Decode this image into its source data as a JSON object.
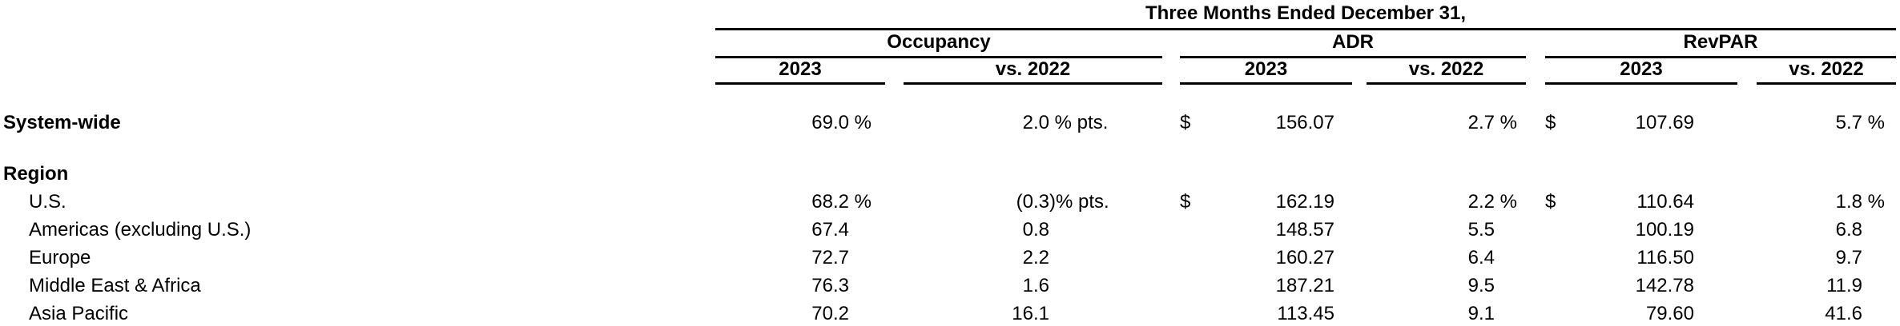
{
  "colors": {
    "text": "#000000",
    "rule": "#000000",
    "background": "#ffffff"
  },
  "table": {
    "period_header": "Three Months Ended December 31,",
    "column_groups": [
      {
        "label": "Occupancy",
        "columns": [
          "2023",
          "vs. 2022"
        ]
      },
      {
        "label": "ADR",
        "columns": [
          "2023",
          "vs. 2022"
        ]
      },
      {
        "label": "RevPAR",
        "columns": [
          "2023",
          "vs. 2022"
        ]
      }
    ],
    "rows": [
      {
        "label": "System-wide",
        "bold": true,
        "indent": false,
        "occupancy_2023": {
          "num": "69.0",
          "suffix": " %"
        },
        "occupancy_vs_2022": {
          "num": "2.0",
          "suffix": " % pts."
        },
        "adr_currency": "$",
        "adr_2023": "156.07",
        "adr_vs_2022": {
          "num": "2.7",
          "suffix": " %"
        },
        "revpar_currency": "$",
        "revpar_2023": "107.69",
        "revpar_vs_2022": {
          "num": "5.7",
          "suffix": " %"
        }
      },
      {
        "label": "Region",
        "bold": true,
        "indent": false,
        "section_header": true,
        "gap_before": true
      },
      {
        "label": "U.S.",
        "bold": false,
        "indent": true,
        "occupancy_2023": {
          "num": "68.2",
          "suffix": " %"
        },
        "occupancy_vs_2022": {
          "num": "(0.3",
          "suffix": ")% pts."
        },
        "adr_currency": "$",
        "adr_2023": "162.19",
        "adr_vs_2022": {
          "num": "2.2",
          "suffix": " %"
        },
        "revpar_currency": "$",
        "revpar_2023": "110.64",
        "revpar_vs_2022": {
          "num": "1.8",
          "suffix": " %"
        }
      },
      {
        "label": "Americas (excluding U.S.)",
        "bold": false,
        "indent": true,
        "occupancy_2023": {
          "num": "67.4",
          "suffix": ""
        },
        "occupancy_vs_2022": {
          "num": "0.8",
          "suffix": ""
        },
        "adr_currency": "",
        "adr_2023": "148.57",
        "adr_vs_2022": {
          "num": "5.5",
          "suffix": ""
        },
        "revpar_currency": "",
        "revpar_2023": "100.19",
        "revpar_vs_2022": {
          "num": "6.8",
          "suffix": ""
        }
      },
      {
        "label": "Europe",
        "bold": false,
        "indent": true,
        "occupancy_2023": {
          "num": "72.7",
          "suffix": ""
        },
        "occupancy_vs_2022": {
          "num": "2.2",
          "suffix": ""
        },
        "adr_currency": "",
        "adr_2023": "160.27",
        "adr_vs_2022": {
          "num": "6.4",
          "suffix": ""
        },
        "revpar_currency": "",
        "revpar_2023": "116.50",
        "revpar_vs_2022": {
          "num": "9.7",
          "suffix": ""
        }
      },
      {
        "label": "Middle East & Africa",
        "bold": false,
        "indent": true,
        "occupancy_2023": {
          "num": "76.3",
          "suffix": ""
        },
        "occupancy_vs_2022": {
          "num": "1.6",
          "suffix": ""
        },
        "adr_currency": "",
        "adr_2023": "187.21",
        "adr_vs_2022": {
          "num": "9.5",
          "suffix": ""
        },
        "revpar_currency": "",
        "revpar_2023": "142.78",
        "revpar_vs_2022": {
          "num": "11.9",
          "suffix": ""
        }
      },
      {
        "label": "Asia Pacific",
        "bold": false,
        "indent": true,
        "occupancy_2023": {
          "num": "70.2",
          "suffix": ""
        },
        "occupancy_vs_2022": {
          "num": "16.1",
          "suffix": ""
        },
        "adr_currency": "",
        "adr_2023": "113.45",
        "adr_vs_2022": {
          "num": "9.1",
          "suffix": ""
        },
        "revpar_currency": "",
        "revpar_2023": "79.60",
        "revpar_vs_2022": {
          "num": "41.6",
          "suffix": ""
        }
      }
    ]
  }
}
